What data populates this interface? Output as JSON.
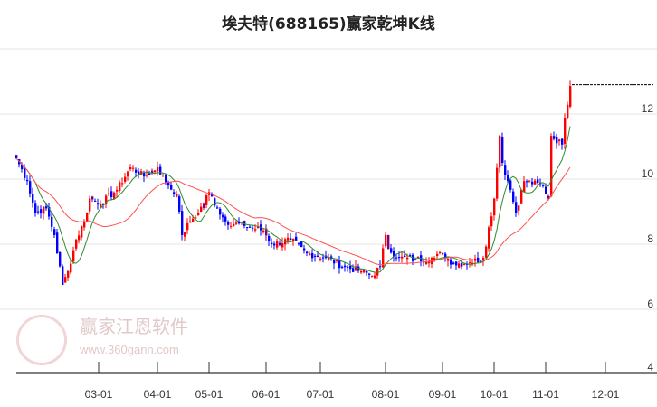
{
  "chart_data": {
    "type": "candlestick",
    "title": "埃夫特(688165)赢家乾坤K线",
    "y_ticks": [
      "12",
      "10",
      "8",
      "6",
      "4"
    ],
    "ylim": [
      4,
      14
    ],
    "x_ticks": [
      "03-01",
      "04-01",
      "05-01",
      "06-01",
      "07-01",
      "08-01",
      "09-01",
      "10-01",
      "11-01",
      "12-01"
    ],
    "x_tick_day_index": [
      30,
      52,
      71,
      92,
      112,
      136,
      157,
      176,
      195,
      217
    ],
    "close_anchors": [
      [
        0,
        10.64
      ],
      [
        4,
        9.94
      ],
      [
        7,
        8.97
      ],
      [
        11,
        9.1
      ],
      [
        14,
        8.28
      ],
      [
        17,
        6.75
      ],
      [
        19,
        7.17
      ],
      [
        22,
        8.14
      ],
      [
        25,
        8.7
      ],
      [
        27,
        9.4
      ],
      [
        31,
        9.25
      ],
      [
        37,
        9.67
      ],
      [
        42,
        10.36
      ],
      [
        47,
        10.08
      ],
      [
        52,
        10.36
      ],
      [
        56,
        9.8
      ],
      [
        59,
        9.53
      ],
      [
        61,
        8.28
      ],
      [
        64,
        8.7
      ],
      [
        67,
        8.97
      ],
      [
        71,
        9.6
      ],
      [
        74,
        9.1
      ],
      [
        77,
        8.7
      ],
      [
        84,
        8.56
      ],
      [
        91,
        8.42
      ],
      [
        94,
        8.0
      ],
      [
        101,
        8.14
      ],
      [
        107,
        7.72
      ],
      [
        114,
        7.58
      ],
      [
        121,
        7.3
      ],
      [
        127,
        7.17
      ],
      [
        131,
        7.03
      ],
      [
        134,
        7.3
      ],
      [
        136,
        8.28
      ],
      [
        137,
        7.86
      ],
      [
        141,
        7.58
      ],
      [
        147,
        7.53
      ],
      [
        154,
        7.58
      ],
      [
        157,
        7.72
      ],
      [
        161,
        7.39
      ],
      [
        167,
        7.44
      ],
      [
        172,
        7.58
      ],
      [
        176,
        9.4
      ],
      [
        178,
        11.33
      ],
      [
        179,
        10.5
      ],
      [
        182,
        9.67
      ],
      [
        184,
        8.97
      ],
      [
        187,
        9.94
      ],
      [
        194,
        9.8
      ],
      [
        196,
        9.4
      ],
      [
        197,
        11.33
      ],
      [
        201,
        11.06
      ],
      [
        202,
        11.89
      ],
      [
        204,
        12.86
      ]
    ],
    "last_price": 12.9,
    "series": [
      {
        "name": "短期均线",
        "color": "#2e8b2e"
      },
      {
        "name": "长期均线",
        "color": "#ff5050"
      }
    ],
    "colors": {
      "up": "#ff0000",
      "down": "#0000ff",
      "signal": "#800080"
    }
  },
  "watermark": {
    "brand": "赢家江恩软件",
    "url": "www.360gann.com",
    "logo_text": [
      "江",
      "赢",
      "恩",
      "家"
    ]
  }
}
